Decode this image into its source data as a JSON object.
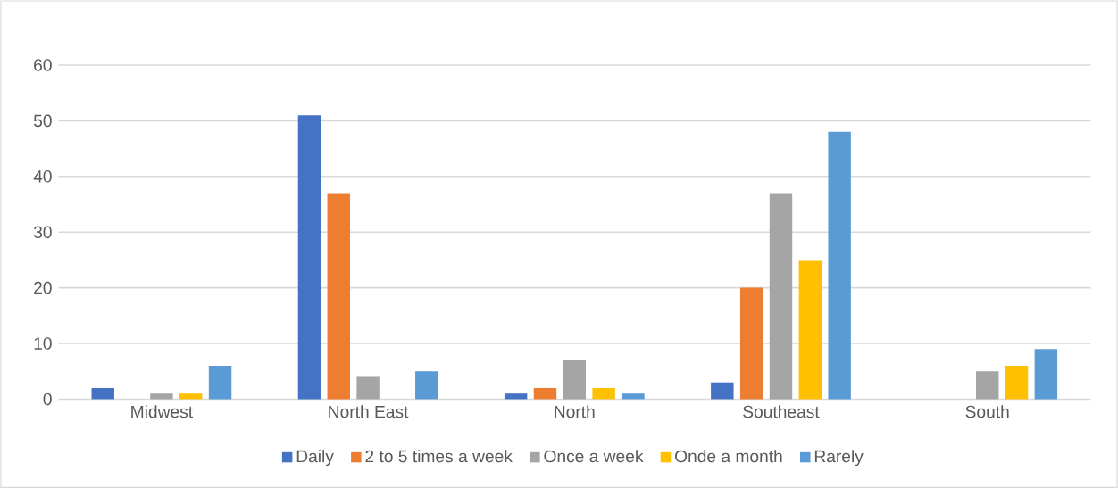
{
  "chart_data": {
    "type": "bar",
    "categories": [
      "Midwest",
      "North East",
      "North",
      "Southeast",
      "South"
    ],
    "series": [
      {
        "name": "Daily",
        "color": "#4472c4",
        "values": [
          2,
          51,
          1,
          3,
          null
        ]
      },
      {
        "name": "2 to 5 times a week",
        "color": "#ed7d31",
        "values": [
          null,
          37,
          2,
          20,
          null
        ]
      },
      {
        "name": "Once a week",
        "color": "#a5a5a5",
        "values": [
          1,
          4,
          7,
          37,
          5
        ]
      },
      {
        "name": "Onde a month",
        "color": "#ffc000",
        "values": [
          1,
          null,
          2,
          25,
          6
        ]
      },
      {
        "name": "Rarely",
        "color": "#5b9bd5",
        "values": [
          6,
          5,
          1,
          48,
          9
        ]
      }
    ],
    "ylim": [
      0,
      60
    ],
    "yticks": [
      0,
      10,
      20,
      30,
      40,
      50,
      60
    ],
    "grid": "y",
    "legend": "bottom"
  }
}
